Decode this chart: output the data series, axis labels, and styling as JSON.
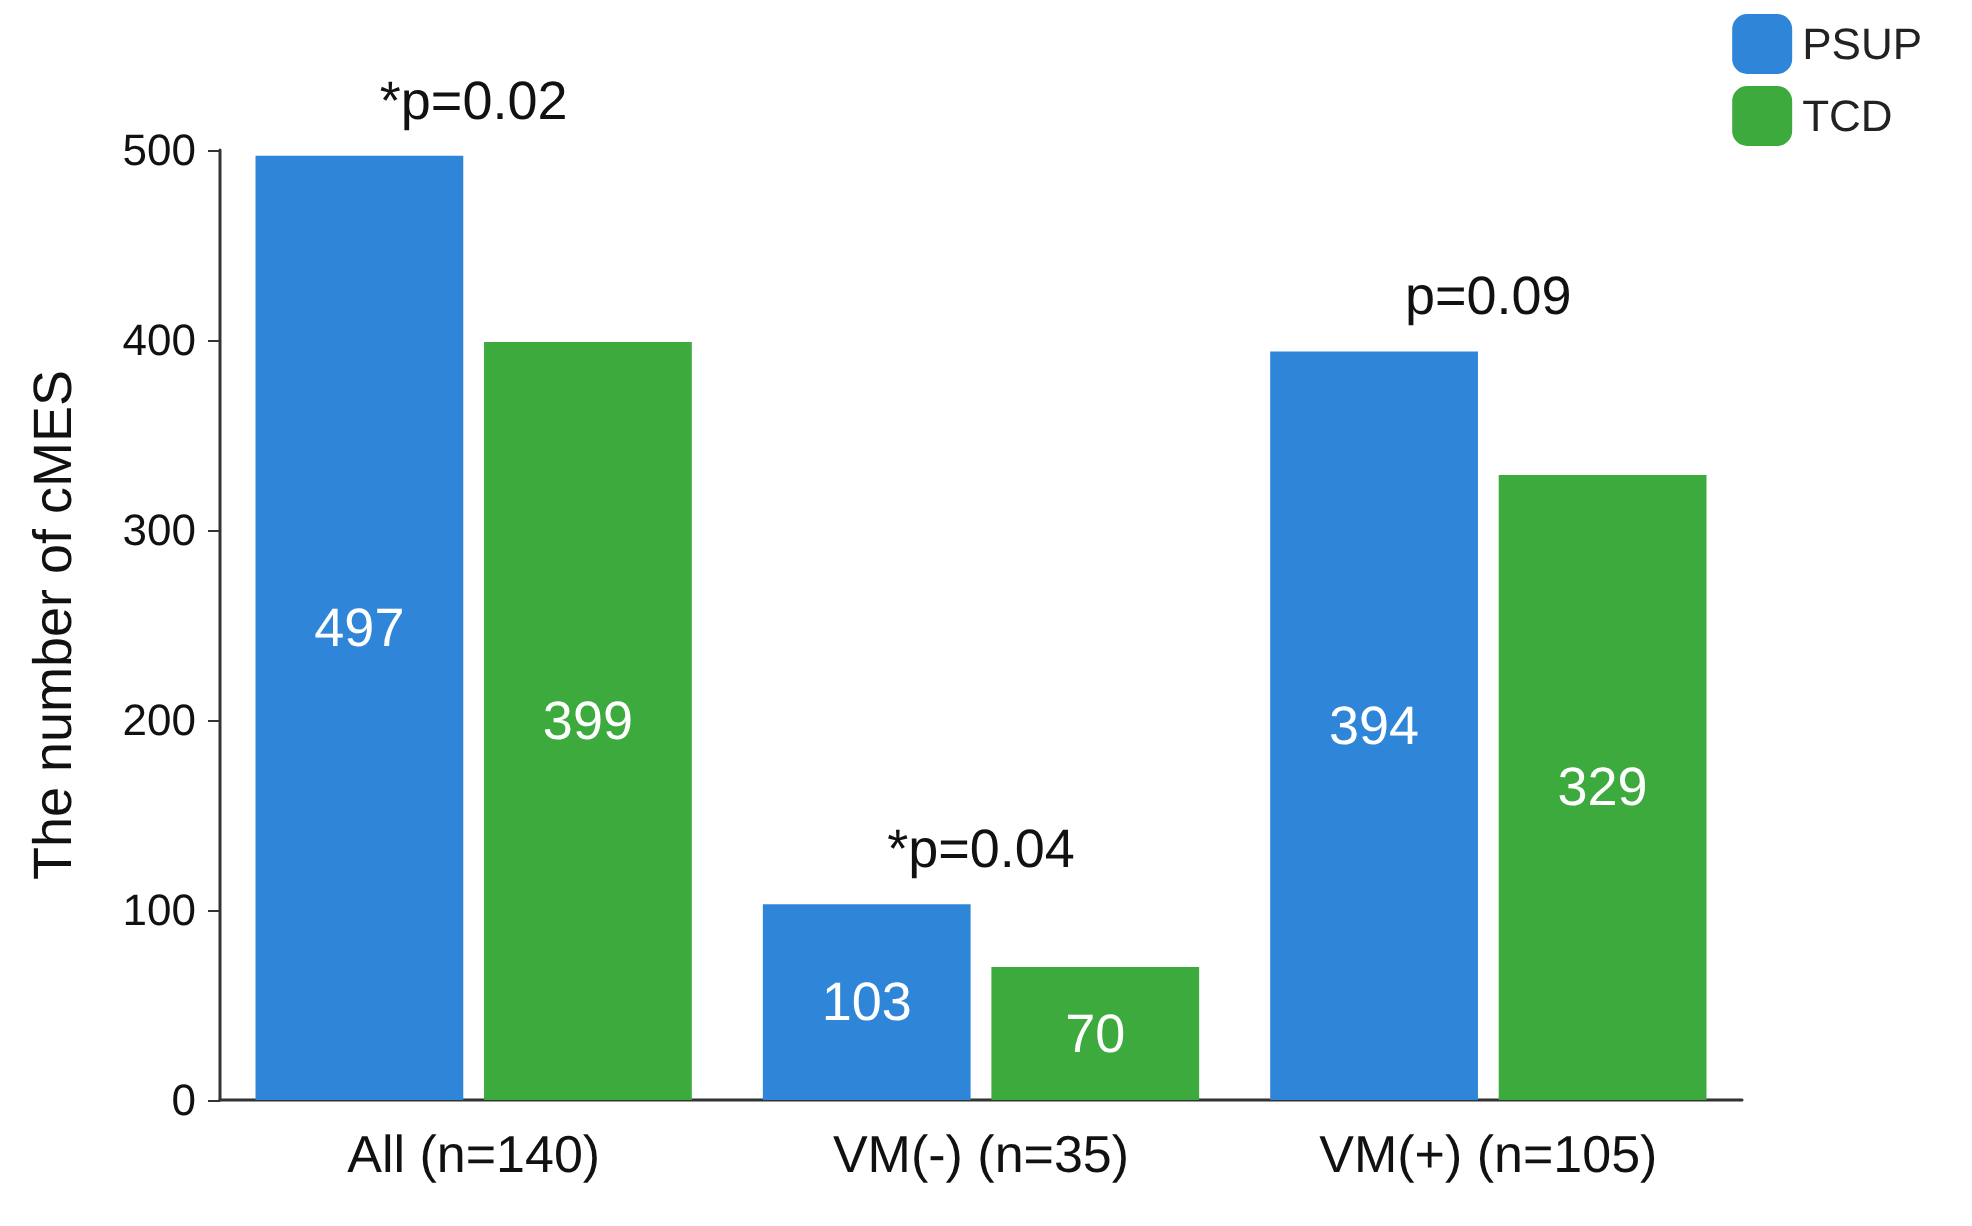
{
  "chart_data": {
    "type": "bar",
    "ylabel": "The number of cMES",
    "categories": [
      "All (n=140)",
      "VM(-) (n=35)",
      "VM(+) (n=105)"
    ],
    "series": [
      {
        "name": "PSUP",
        "color": "#2f86d8",
        "values": [
          497,
          103,
          394
        ]
      },
      {
        "name": "TCD",
        "color": "#3daa3d",
        "values": [
          399,
          70,
          329
        ]
      }
    ],
    "ylim": [
      0,
      500
    ],
    "yticks": [
      0,
      100,
      200,
      300,
      400,
      500
    ],
    "data_labels": true,
    "grid": false,
    "legend": "top right",
    "annotations": [
      "*p=0.02",
      "*p=0.04",
      "p=0.09"
    ]
  }
}
